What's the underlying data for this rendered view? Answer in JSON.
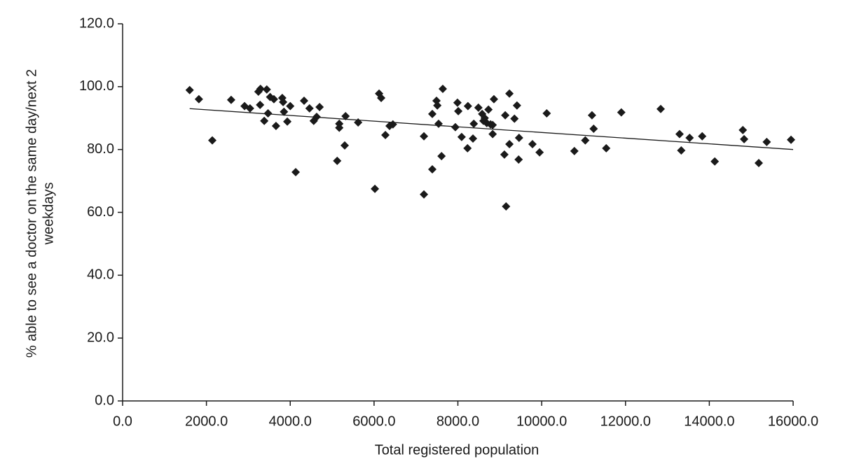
{
  "chart_data": {
    "type": "scatter",
    "x_label": "Total registered population",
    "y_label": [
      "% able to see a doctor on the same day/next 2",
      "weekdays"
    ],
    "color": "#1a1a1a",
    "xlim": [
      0,
      16000
    ],
    "xticks": [
      {
        "value": 0,
        "label": "0.0"
      },
      {
        "value": 2000,
        "label": "2000.0"
      },
      {
        "value": 4000,
        "label": "4000.0"
      },
      {
        "value": 6000,
        "label": "6000.0"
      },
      {
        "value": 8000,
        "label": "8000.0"
      },
      {
        "value": 10000,
        "label": "10000.0"
      },
      {
        "value": 12000,
        "label": "12000.0"
      },
      {
        "value": 14000,
        "label": "14000.0"
      },
      {
        "value": 16000,
        "label": "16000.0"
      }
    ],
    "ylim": [
      0,
      120
    ],
    "yticks": [
      {
        "value": 0,
        "label": "0.0"
      },
      {
        "value": 20,
        "label": "20.0"
      },
      {
        "value": 40,
        "label": "40.0"
      },
      {
        "value": 60,
        "label": "60.0"
      },
      {
        "value": 80,
        "label": "80.0"
      },
      {
        "value": 100,
        "label": "100.0"
      },
      {
        "value": 120,
        "label": "120.0"
      }
    ],
    "x": [
      1600,
      1820,
      2140,
      2590,
      2910,
      3040,
      3240,
      3290,
      3280,
      3380,
      3440,
      3470,
      3520,
      3610,
      3660,
      3810,
      3830,
      3850,
      3930,
      4000,
      4130,
      4330,
      4460,
      4560,
      4630,
      4700,
      5120,
      5170,
      5170,
      5300,
      5320,
      5620,
      6020,
      6120,
      6170,
      6270,
      6370,
      6450,
      7190,
      7190,
      7390,
      7390,
      7490,
      7510,
      7540,
      7610,
      7640,
      7940,
      7990,
      8010,
      8090,
      8230,
      8240,
      8360,
      8380,
      8490,
      8580,
      8610,
      8640,
      8690,
      8730,
      8780,
      8830,
      8830,
      8860,
      9110,
      9130,
      9150,
      9230,
      9230,
      9350,
      9410,
      9450,
      9460,
      9780,
      9950,
      10120,
      10780,
      11040,
      11200,
      11240,
      11540,
      11900,
      12840,
      13290,
      13330,
      13530,
      13830,
      14130,
      14800,
      14830,
      15180,
      15370,
      15950
    ],
    "values": [
      98.9,
      96.0,
      82.9,
      95.8,
      93.8,
      93.1,
      98.4,
      99.3,
      94.2,
      89.1,
      99.1,
      91.5,
      96.7,
      96.0,
      87.5,
      96.4,
      95.1,
      92.0,
      88.9,
      93.8,
      72.8,
      95.5,
      93.1,
      89.1,
      90.4,
      93.5,
      76.4,
      88.2,
      86.9,
      81.3,
      90.6,
      88.6,
      67.5,
      97.8,
      96.4,
      84.6,
      87.5,
      88.0,
      65.7,
      84.2,
      73.7,
      91.3,
      95.5,
      94.0,
      88.2,
      77.9,
      99.3,
      87.1,
      94.9,
      92.2,
      84.0,
      80.4,
      93.8,
      83.5,
      88.2,
      93.3,
      91.3,
      89.1,
      90.0,
      88.4,
      92.7,
      88.0,
      84.9,
      87.8,
      96.0,
      78.4,
      90.9,
      61.9,
      97.8,
      81.7,
      89.8,
      94.0,
      76.8,
      83.7,
      81.7,
      79.1,
      91.5,
      79.5,
      82.9,
      90.9,
      86.6,
      80.4,
      91.8,
      92.9,
      84.9,
      79.7,
      83.7,
      84.2,
      76.2,
      86.2,
      83.3,
      75.7,
      82.4,
      83.1
    ],
    "trend_line": {
      "x": [
        1600,
        16000
      ],
      "values": [
        93.0,
        80.0
      ]
    }
  }
}
